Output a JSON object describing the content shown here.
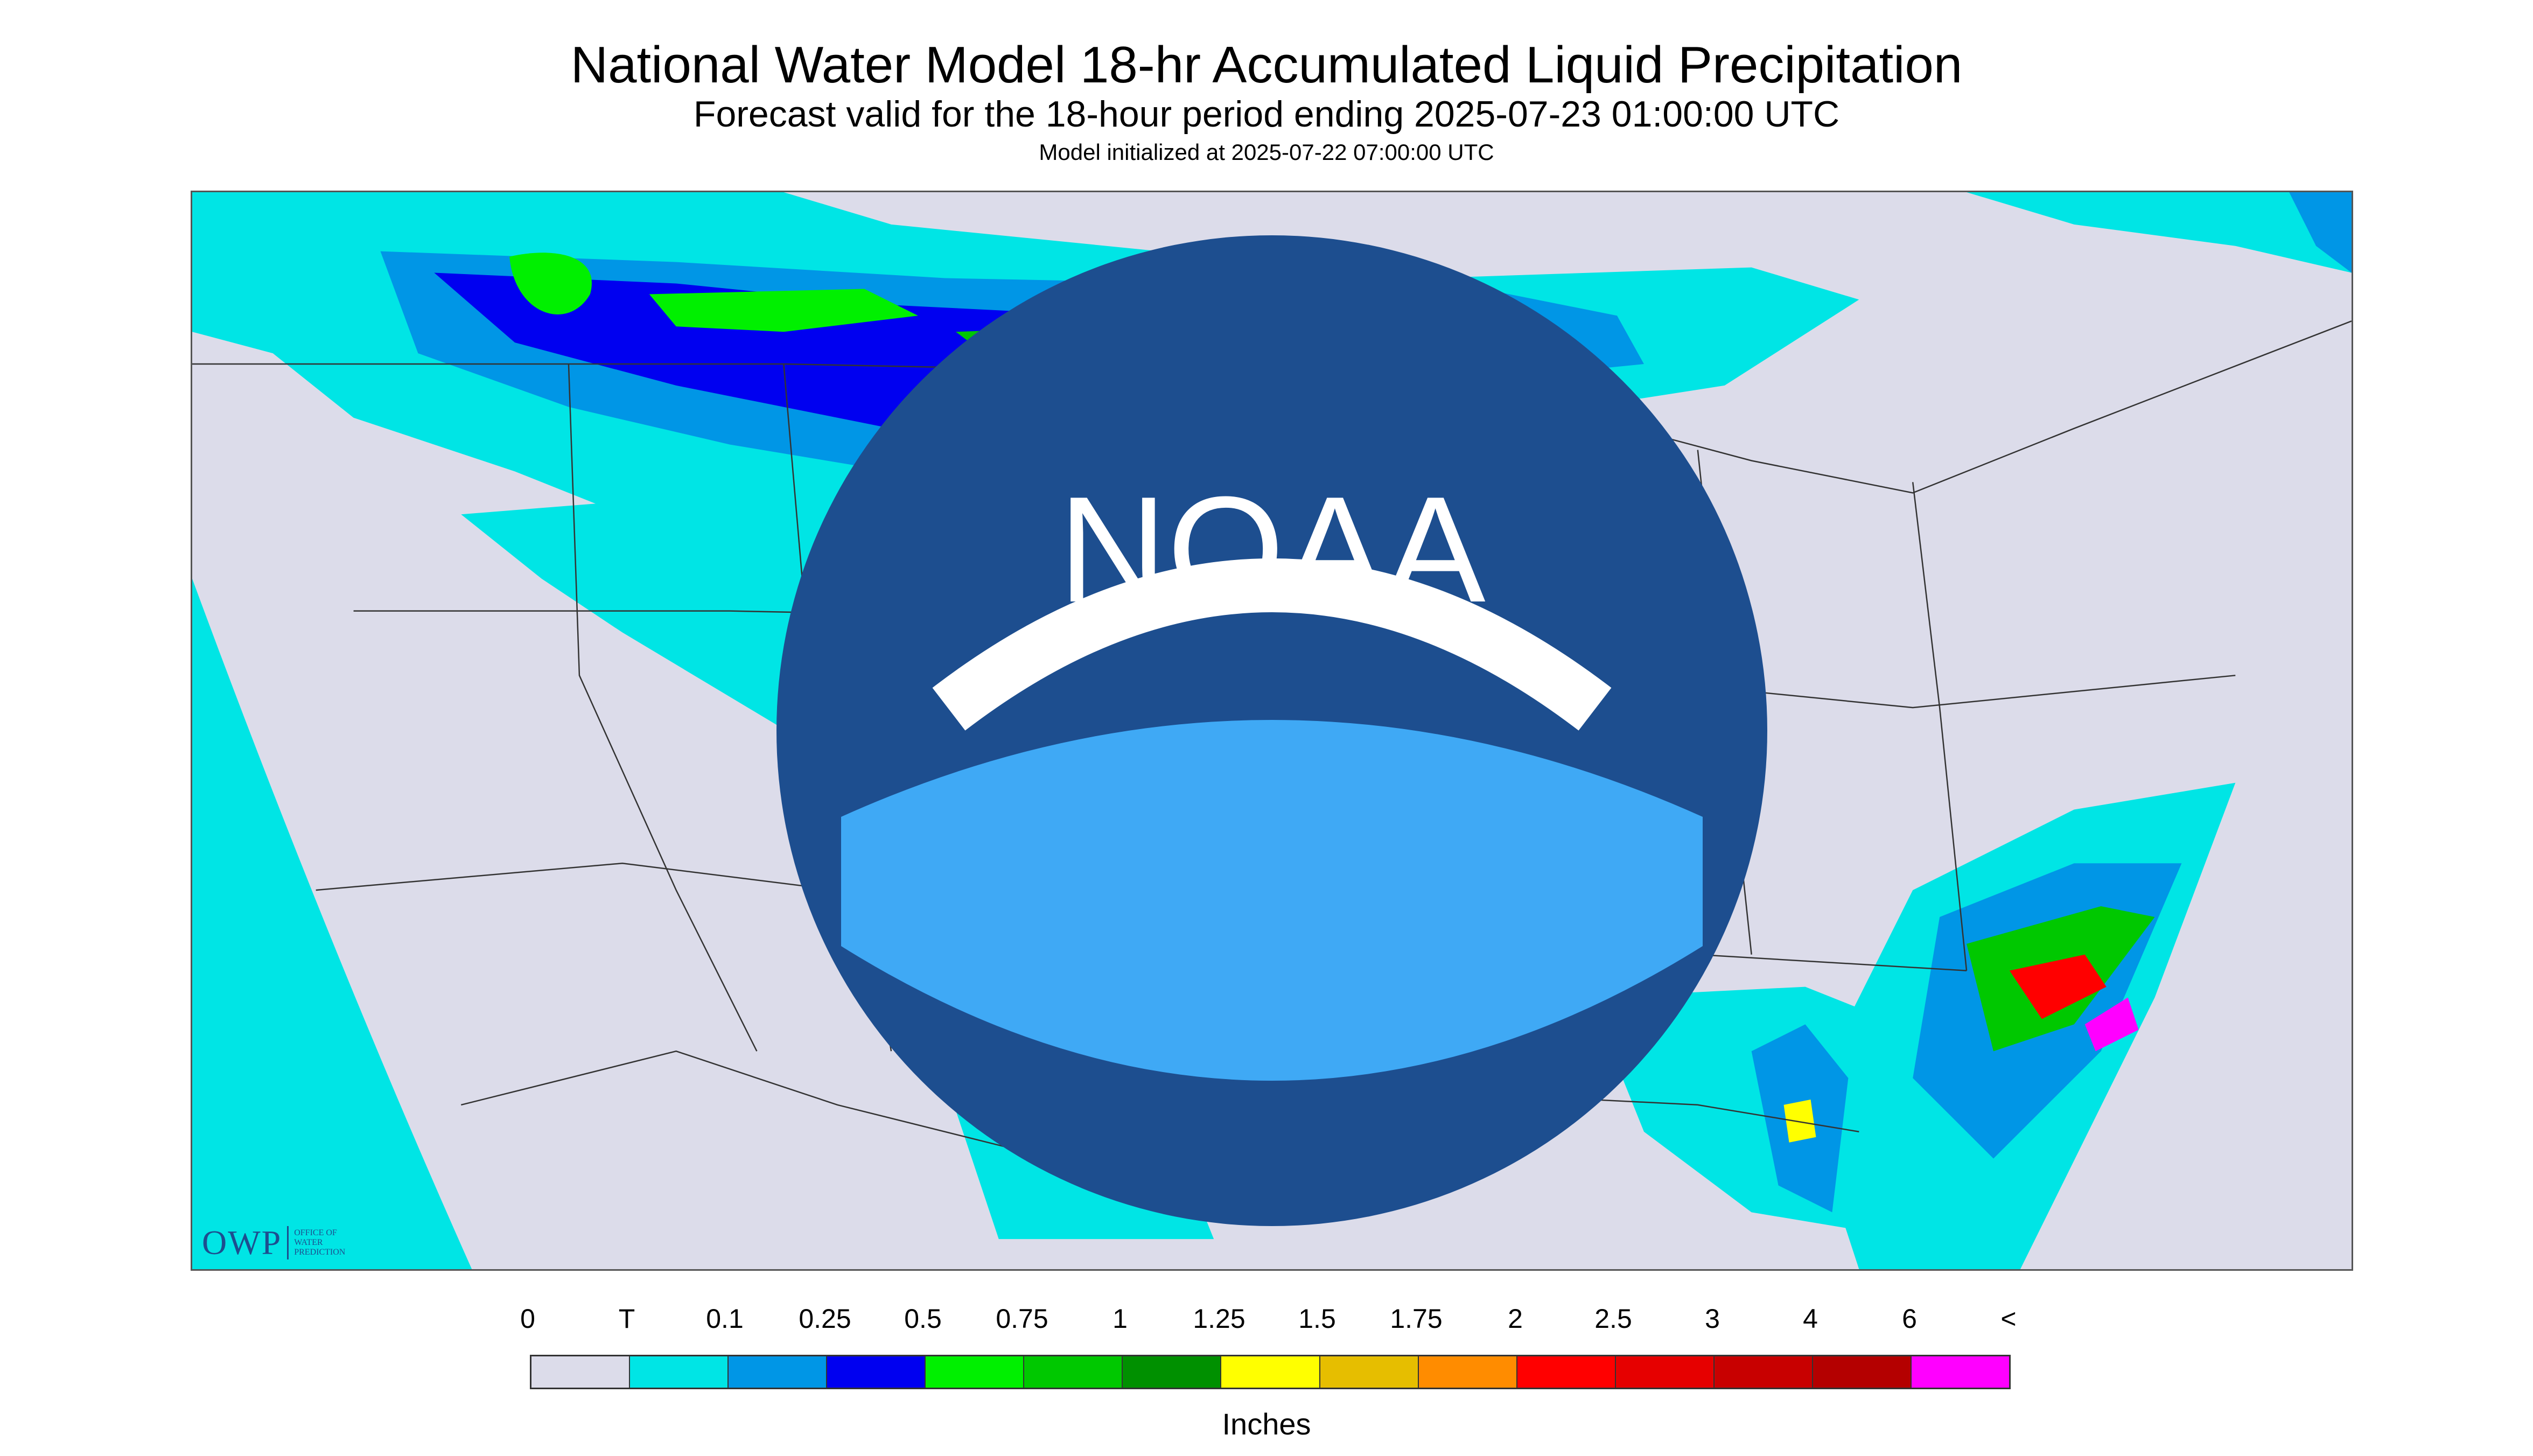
{
  "header": {
    "title": "National Water Model 18-hr Accumulated Liquid Precipitation",
    "subtitle": "Forecast valid for the 18-hour period ending 2025-07-23 01:00:00 UTC",
    "init": "Model initialized at 2025-07-22 07:00:00 UTC"
  },
  "logos": {
    "owp_text": "OWP",
    "owp_subtext": [
      "OFFICE OF",
      "WATER",
      "PREDICTION"
    ],
    "noaa_text": "NOAA"
  },
  "legend": {
    "labels": [
      "0",
      "T",
      "0.1",
      "0.25",
      "0.5",
      "0.75",
      "1",
      "1.25",
      "1.5",
      "1.75",
      "2",
      "2.5",
      "3",
      "4",
      "6",
      "<"
    ],
    "colors": [
      "#dcdcea",
      "#00e5e5",
      "#0096e6",
      "#0000f0",
      "#00f000",
      "#00c800",
      "#009000",
      "#ffff00",
      "#e6be00",
      "#ff8c00",
      "#ff0000",
      "#e60000",
      "#c80000",
      "#b40000",
      "#ff00ff",
      "#9955cc"
    ],
    "units": "Inches"
  },
  "map": {
    "background_color": "#dcdcea",
    "light_precip_color": "#00e5e5",
    "border_color": "#333333"
  }
}
